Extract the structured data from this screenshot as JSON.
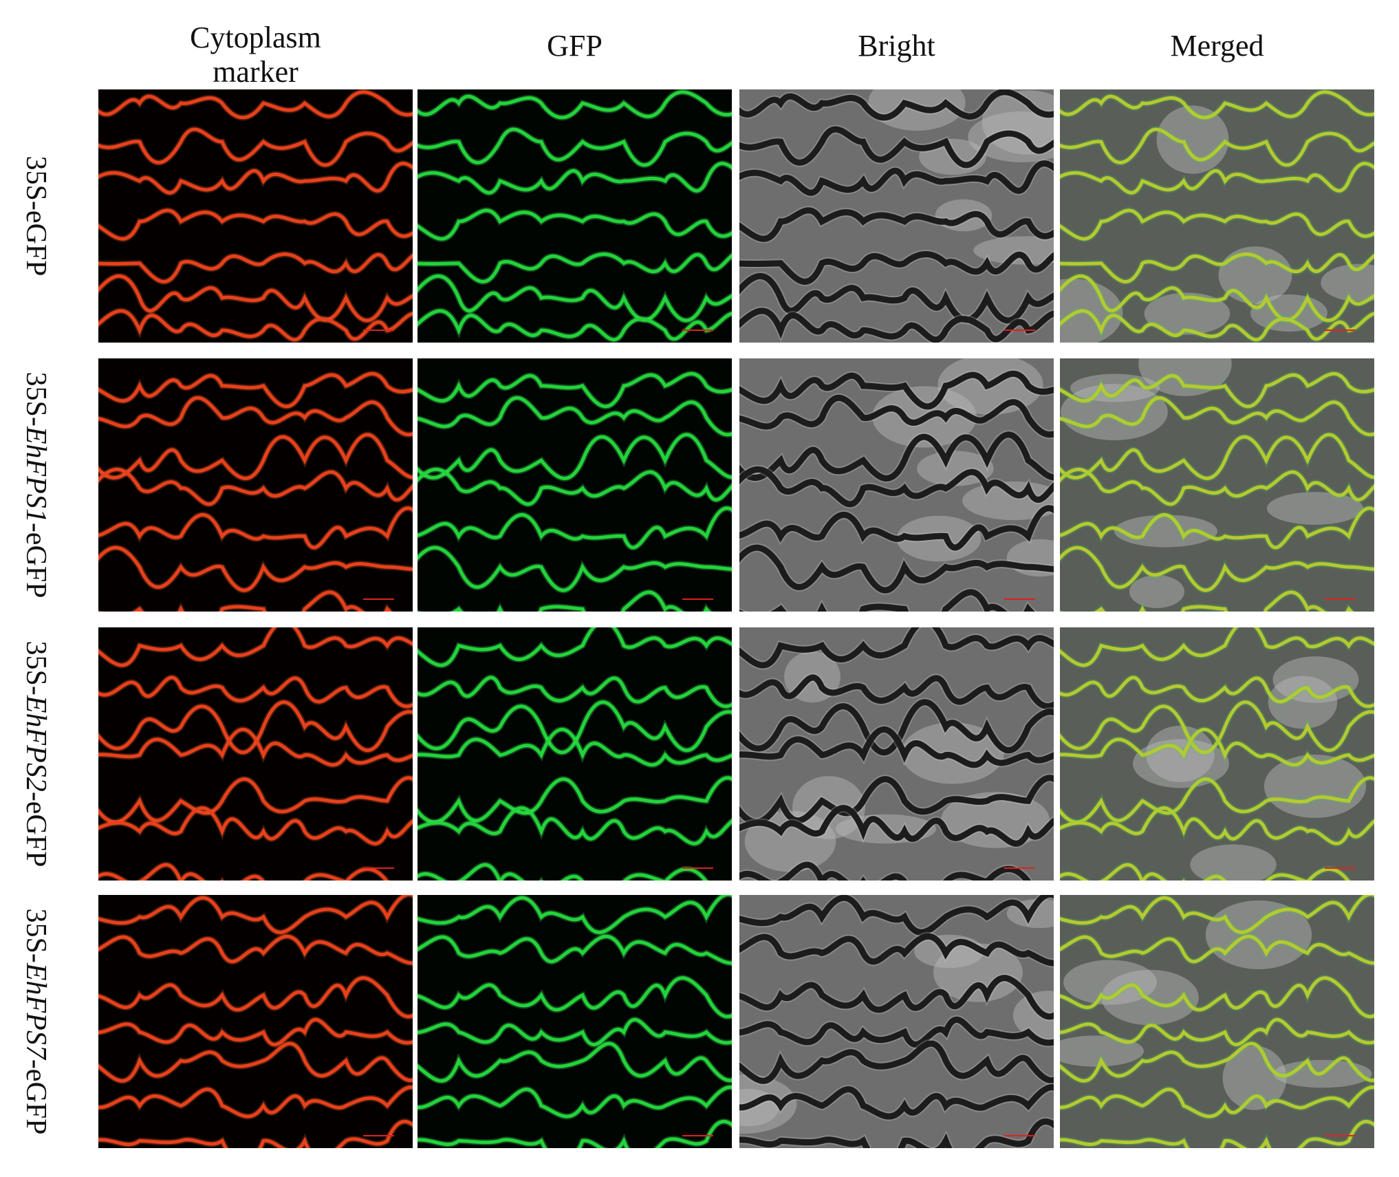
{
  "columns": [
    "Cytoplasm marker",
    "GFP",
    "Bright",
    "Merged"
  ],
  "rows": [
    {
      "parts": [
        {
          "text": "35S-eGFP"
        }
      ]
    },
    {
      "parts": [
        {
          "text": "35S-"
        },
        {
          "text": "EhFPS1",
          "italic": true
        },
        {
          "text": "-eGFP"
        }
      ]
    },
    {
      "parts": [
        {
          "text": "35S-"
        },
        {
          "text": "EhFPS2",
          "italic": true
        },
        {
          "text": "-eGFP"
        }
      ]
    },
    {
      "parts": [
        {
          "text": "35S-"
        },
        {
          "text": "EhFPS7",
          "italic": true
        },
        {
          "text": "-eGFP"
        }
      ]
    }
  ]
}
